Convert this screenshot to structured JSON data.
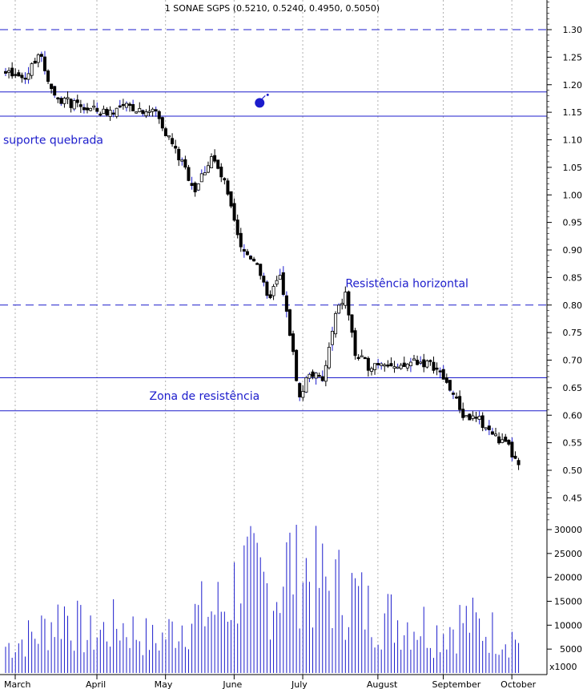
{
  "chart_data": {
    "type": "candlestick",
    "title": "1 SONAE SGPS (0.5210, 0.5240, 0.4950, 0.5050)",
    "price_axis": {
      "min": 0.4,
      "max": 1.35,
      "ticks": [
        "1.30",
        "1.25",
        "1.20",
        "1.15",
        "1.10",
        "1.05",
        "1.00",
        "0.95",
        "0.90",
        "0.85",
        "0.80",
        "0.75",
        "0.70",
        "0.65",
        "0.60",
        "0.55",
        "0.50",
        "0.45"
      ]
    },
    "volume_axis": {
      "min": 0,
      "max": 32000,
      "ticks": [
        "30000",
        "25000",
        "20000",
        "15000",
        "10000",
        "5000"
      ],
      "unit_label": "x1000"
    },
    "months": [
      "March",
      "April",
      "May",
      "June",
      "July",
      "August",
      "September",
      "October"
    ],
    "month_start_index": [
      0,
      25,
      46,
      67,
      88,
      111,
      131,
      152
    ],
    "reference_lines": [
      {
        "price": 1.3,
        "style": "dashed"
      },
      {
        "price": 1.187,
        "style": "solid"
      },
      {
        "price": 1.143,
        "style": "solid"
      },
      {
        "price": 0.8,
        "style": "dashed"
      },
      {
        "price": 0.668,
        "style": "solid"
      },
      {
        "price": 0.608,
        "style": "solid"
      }
    ],
    "annotations": [
      {
        "text": "suporte quebrada",
        "price": 1.1,
        "x_index": 0
      },
      {
        "text": "Resistência horizontal",
        "price": 0.84,
        "x_index": 104
      },
      {
        "text": "Zona de resistência",
        "price": 0.635,
        "x_index": 44
      }
    ],
    "marker": {
      "price": 1.17,
      "x_index": 78
    },
    "price_path": {
      "index": [
        0,
        6,
        10,
        15,
        22,
        30,
        38,
        46,
        52,
        58,
        63,
        67,
        72,
        77,
        80,
        84,
        87,
        90,
        93,
        97,
        101,
        104,
        107,
        111,
        116,
        120,
        125,
        131,
        136,
        140,
        145,
        150,
        154,
        157
      ],
      "price": [
        1.22,
        1.21,
        1.26,
        1.18,
        1.16,
        1.15,
        1.16,
        1.15,
        1.08,
        1.01,
        1.07,
        1.02,
        0.9,
        0.88,
        0.81,
        0.85,
        0.75,
        0.63,
        0.68,
        0.66,
        0.78,
        0.82,
        0.71,
        0.69,
        0.7,
        0.68,
        0.7,
        0.69,
        0.65,
        0.6,
        0.59,
        0.56,
        0.54,
        0.505
      ]
    },
    "volume_path": {
      "index": [
        0,
        10,
        18,
        25,
        35,
        46,
        55,
        67,
        72,
        78,
        82,
        86,
        90,
        94,
        100,
        106,
        111,
        120,
        128,
        131,
        140,
        150,
        157
      ],
      "volume": [
        6000,
        9000,
        14000,
        8000,
        11000,
        7000,
        12000,
        15000,
        22000,
        20000,
        18000,
        24000,
        26000,
        21000,
        19000,
        18000,
        14000,
        12000,
        11000,
        9000,
        12000,
        9000,
        8000
      ]
    }
  }
}
